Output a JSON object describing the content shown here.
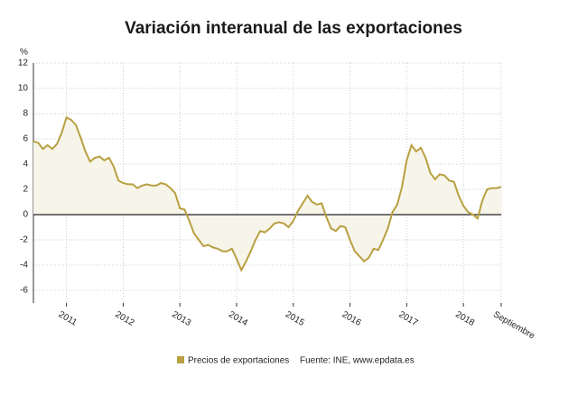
{
  "chart_data": {
    "type": "line",
    "title": "Variación interanual de las exportaciones",
    "y_unit": "%",
    "source": "Fuente: INE, www.epdata.es",
    "categories": [
      null,
      null,
      null,
      null,
      null,
      null,
      null,
      "2011",
      null,
      null,
      null,
      null,
      null,
      null,
      null,
      null,
      null,
      null,
      null,
      "2012",
      null,
      null,
      null,
      null,
      null,
      null,
      null,
      null,
      null,
      null,
      null,
      "2013",
      null,
      null,
      null,
      null,
      null,
      null,
      null,
      null,
      null,
      null,
      null,
      "2014",
      null,
      null,
      null,
      null,
      null,
      null,
      null,
      null,
      null,
      null,
      null,
      "2015",
      null,
      null,
      null,
      null,
      null,
      null,
      null,
      null,
      null,
      null,
      null,
      "2016",
      null,
      null,
      null,
      null,
      null,
      null,
      null,
      null,
      null,
      null,
      null,
      "2017",
      null,
      null,
      null,
      null,
      null,
      null,
      null,
      null,
      null,
      null,
      null,
      "2018",
      null,
      null,
      null,
      null,
      null,
      null,
      null,
      "Septiembre"
    ],
    "series": [
      {
        "name": "Precios de exportaciones",
        "color": "#b8a040",
        "area_color": "#f7f4ea",
        "values": [
          5.8,
          5.7,
          5.2,
          5.5,
          5.2,
          5.6,
          6.5,
          7.7,
          7.5,
          7.1,
          6.1,
          5.0,
          4.2,
          4.5,
          4.6,
          4.3,
          4.5,
          3.8,
          2.7,
          2.5,
          2.4,
          2.4,
          2.1,
          2.3,
          2.4,
          2.3,
          2.3,
          2.5,
          2.4,
          2.1,
          1.7,
          0.5,
          0.4,
          -0.5,
          -1.5,
          -2.0,
          -2.5,
          -2.4,
          -2.6,
          -2.7,
          -2.9,
          -2.9,
          -2.7,
          -3.5,
          -4.4,
          -3.7,
          -2.9,
          -2.0,
          -1.3,
          -1.4,
          -1.1,
          -0.7,
          -0.6,
          -0.7,
          -1.0,
          -0.5,
          0.3,
          0.9,
          1.5,
          1.0,
          0.8,
          0.9,
          -0.2,
          -1.1,
          -1.3,
          -0.9,
          -1.0,
          -2.0,
          -2.9,
          -3.3,
          -3.7,
          -3.4,
          -2.7,
          -2.8,
          -2.0,
          -1.1,
          0.2,
          0.8,
          2.2,
          4.3,
          5.5,
          5.0,
          5.3,
          4.5,
          3.3,
          2.8,
          3.2,
          3.1,
          2.7,
          2.6,
          1.5,
          0.7,
          0.2,
          0.0,
          -0.3,
          1.1,
          2.0,
          2.1,
          2.1,
          2.2
        ]
      }
    ],
    "ylim": [
      -7,
      12
    ],
    "yticks": [
      -6,
      -4,
      -2,
      0,
      2,
      4,
      6,
      8,
      10,
      12
    ],
    "grid": true
  }
}
